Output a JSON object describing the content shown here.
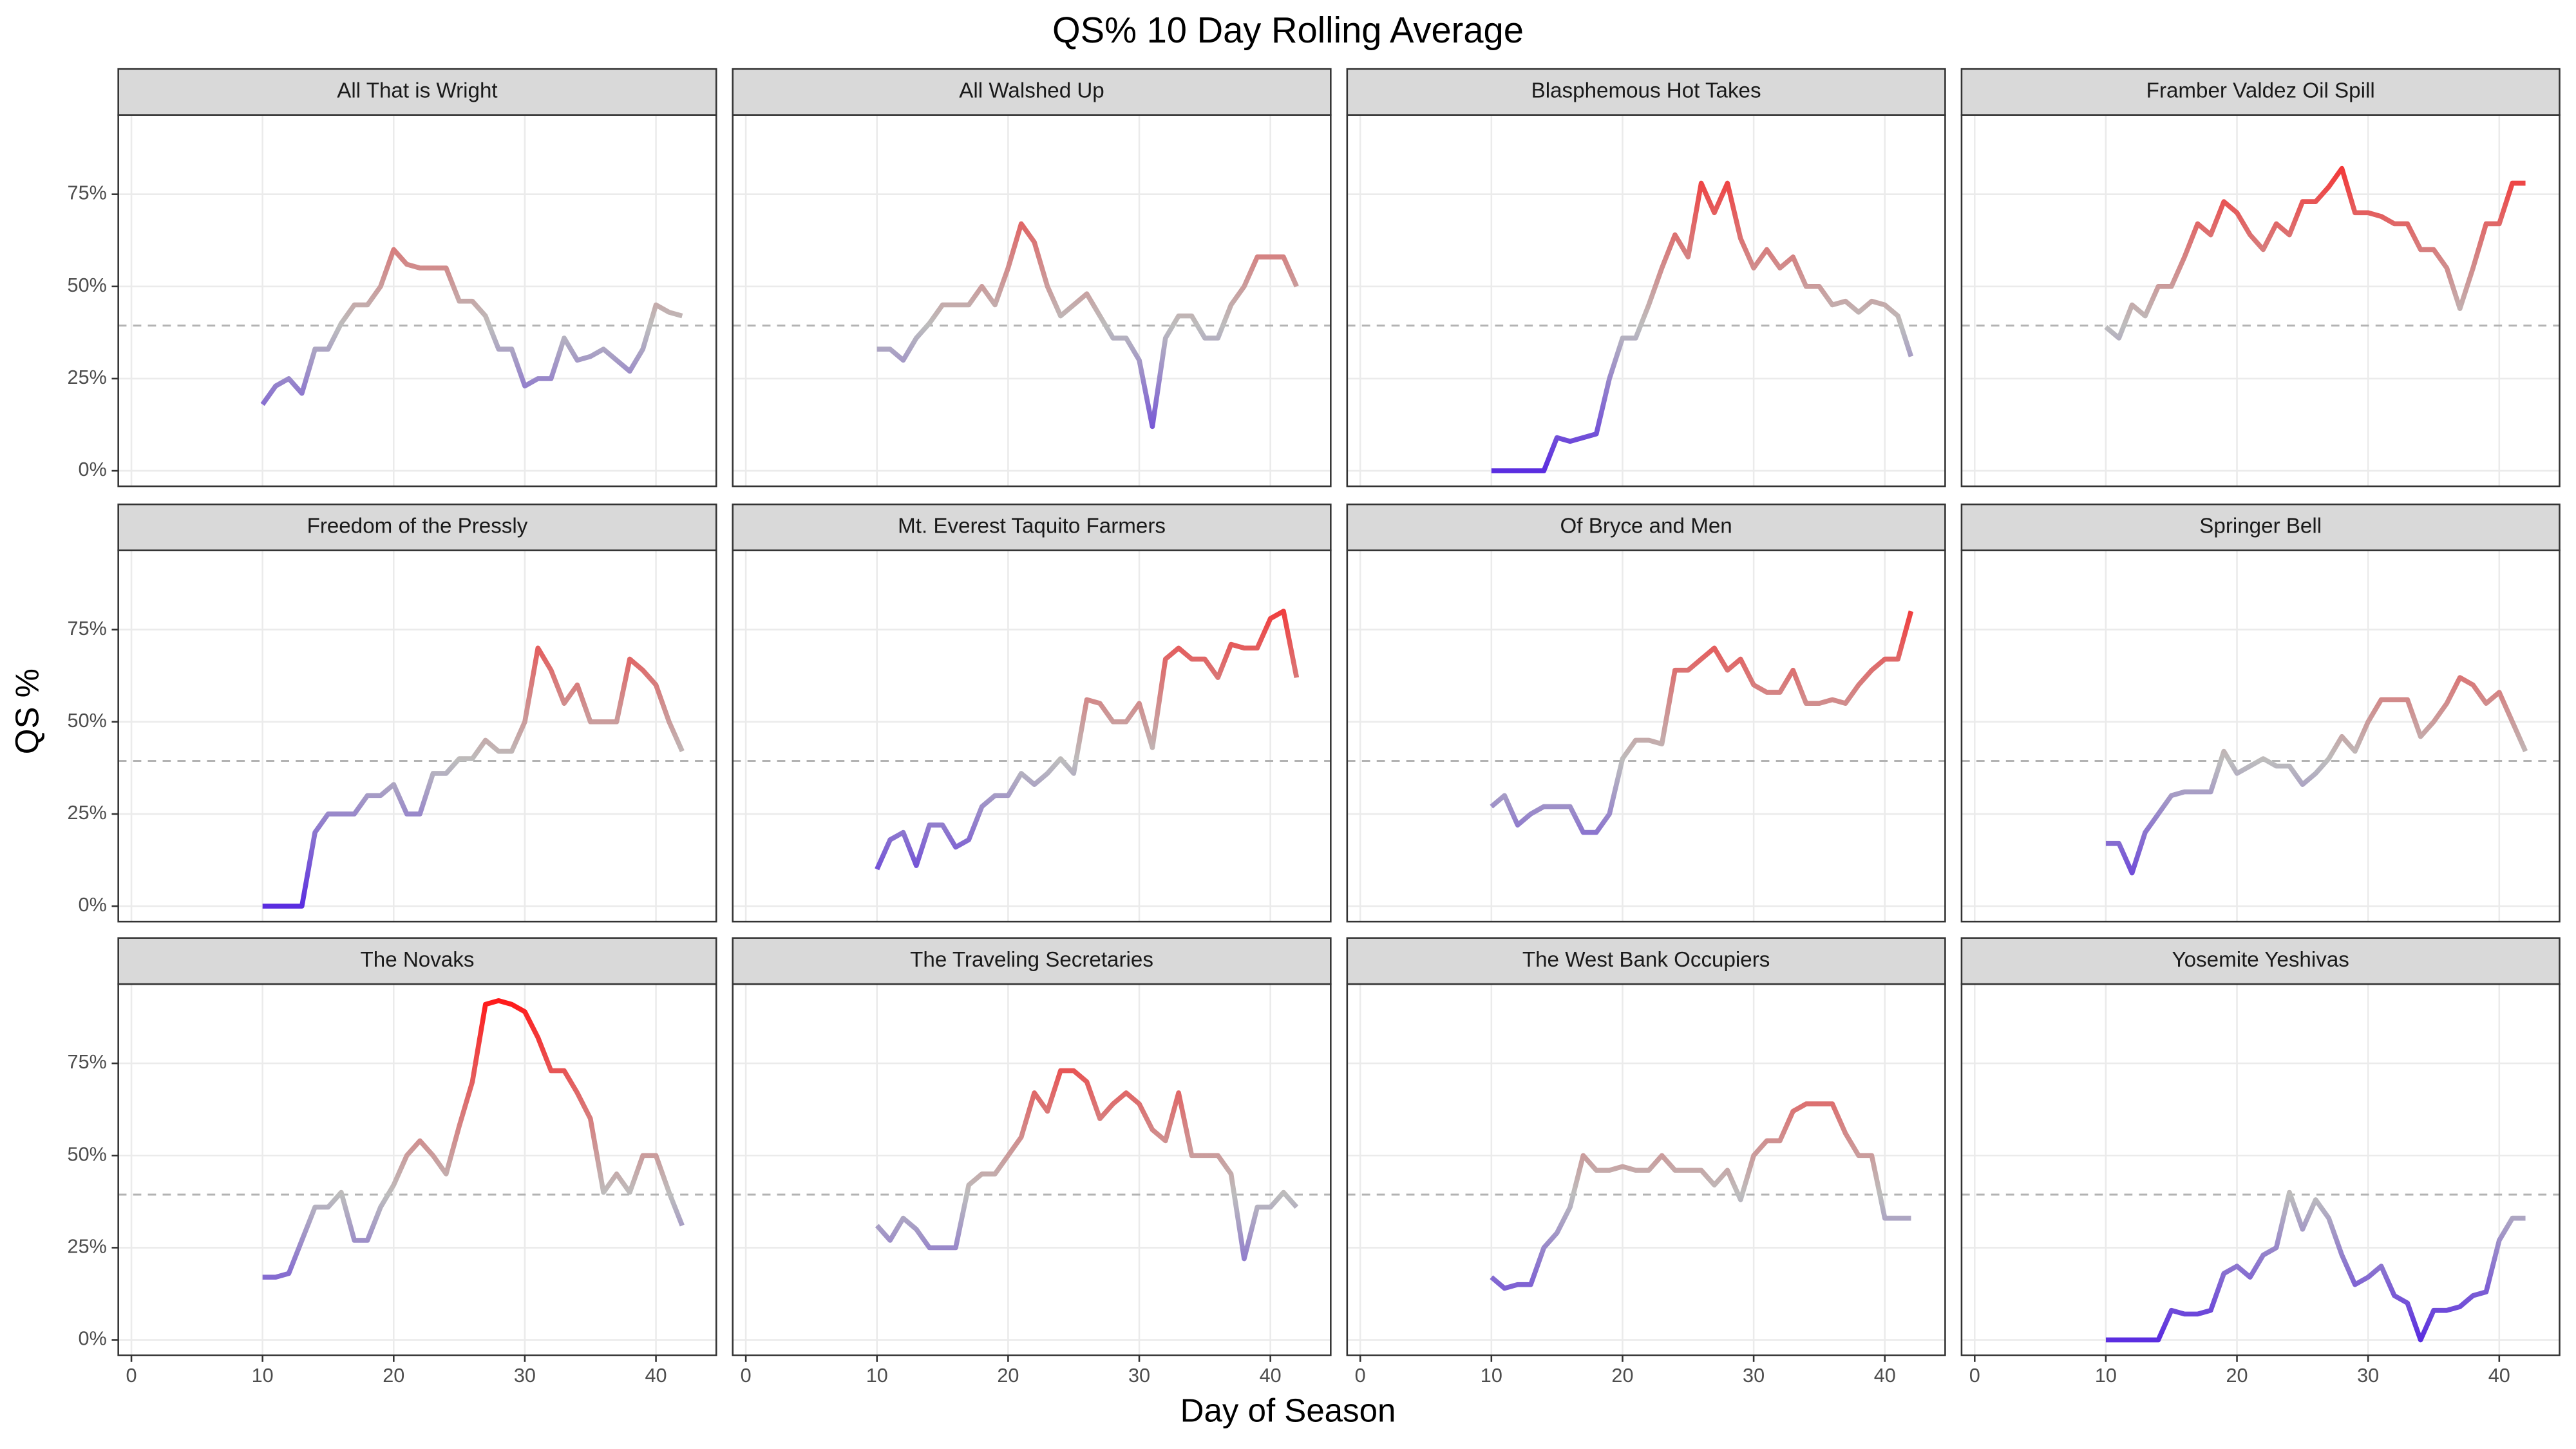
{
  "chart_data": {
    "type": "line",
    "title": "QS% 10 Day Rolling Average",
    "x_label": "Day of Season",
    "y_label": "QS %",
    "x": [
      10,
      11,
      12,
      13,
      14,
      15,
      16,
      17,
      18,
      19,
      20,
      21,
      22,
      23,
      24,
      25,
      26,
      27,
      28,
      29,
      30,
      31,
      32,
      33,
      34,
      35,
      36,
      37,
      38,
      39,
      40,
      41,
      42
    ],
    "xlim": [
      -1,
      44.6
    ],
    "xticks": [
      0,
      10,
      20,
      30,
      40
    ],
    "ylim": [
      -4.2,
      96.5
    ],
    "yticks": [
      {
        "value": 0,
        "label": "0%"
      },
      {
        "value": 25,
        "label": "25%"
      },
      {
        "value": 50,
        "label": "50%"
      },
      {
        "value": 75,
        "label": "75%"
      }
    ],
    "grid": true,
    "reference_line": 39.4,
    "color_scale": {
      "low": "#5a2de0",
      "mid": "#bdbdbd",
      "high": "#ff1a1a",
      "limits": [
        0,
        92
      ]
    },
    "series": [
      {
        "name": "All That is Wright",
        "values": [
          18,
          23,
          25,
          21,
          33,
          33,
          40,
          45,
          45,
          50,
          60,
          56,
          55,
          55,
          55,
          46,
          46,
          42,
          33,
          33,
          23,
          25,
          25,
          36,
          30,
          31,
          33,
          30,
          27,
          33,
          45,
          43,
          42
        ]
      },
      {
        "name": "All Walshed Up",
        "values": [
          33,
          33,
          30,
          36,
          40,
          45,
          45,
          45,
          50,
          45,
          55,
          67,
          62,
          50,
          42,
          45,
          48,
          42,
          36,
          36,
          30,
          12,
          36,
          42,
          42,
          36,
          36,
          45,
          50,
          58,
          58,
          58,
          50
        ]
      },
      {
        "name": "Blasphemous Hot Takes",
        "values": [
          0,
          0,
          0,
          0,
          0,
          9,
          8,
          9,
          10,
          25,
          36,
          36,
          45,
          55,
          64,
          58,
          78,
          70,
          78,
          63,
          55,
          60,
          55,
          58,
          50,
          50,
          45,
          46,
          43,
          46,
          45,
          42,
          31
        ]
      },
      {
        "name": "Framber Valdez Oil Spill",
        "values": [
          39,
          36,
          45,
          42,
          50,
          50,
          58,
          67,
          64,
          73,
          70,
          64,
          60,
          67,
          64,
          73,
          73,
          77,
          82,
          70,
          70,
          69,
          67,
          67,
          60,
          60,
          55,
          44,
          55,
          67,
          67,
          78,
          78
        ]
      },
      {
        "name": "Freedom of the Pressly",
        "values": [
          0,
          0,
          0,
          0,
          20,
          25,
          25,
          25,
          30,
          30,
          33,
          25,
          25,
          36,
          36,
          40,
          40,
          45,
          42,
          42,
          50,
          70,
          64,
          55,
          60,
          50,
          50,
          50,
          67,
          64,
          60,
          50,
          42
        ]
      },
      {
        "name": "Mt. Everest Taquito Farmers",
        "values": [
          10,
          18,
          20,
          11,
          22,
          22,
          16,
          18,
          27,
          30,
          30,
          36,
          33,
          36,
          40,
          36,
          56,
          55,
          50,
          50,
          55,
          43,
          67,
          70,
          67,
          67,
          62,
          71,
          70,
          70,
          78,
          80,
          62
        ]
      },
      {
        "name": "Of Bryce and Men",
        "values": [
          27,
          30,
          22,
          25,
          27,
          27,
          27,
          20,
          20,
          25,
          40,
          45,
          45,
          44,
          64,
          64,
          67,
          70,
          64,
          67,
          60,
          58,
          58,
          64,
          55,
          55,
          56,
          55,
          60,
          64,
          67,
          67,
          80
        ]
      },
      {
        "name": "Springer Bell",
        "values": [
          17,
          17,
          9,
          20,
          25,
          30,
          31,
          31,
          31,
          42,
          36,
          38,
          40,
          38,
          38,
          33,
          36,
          40,
          46,
          42,
          50,
          56,
          56,
          56,
          46,
          50,
          55,
          62,
          60,
          55,
          58,
          50,
          42
        ]
      },
      {
        "name": "The Novaks",
        "values": [
          17,
          17,
          18,
          27,
          36,
          36,
          40,
          27,
          27,
          36,
          42,
          50,
          54,
          50,
          45,
          58,
          70,
          91,
          92,
          91,
          89,
          82,
          73,
          73,
          67,
          60,
          40,
          45,
          40,
          50,
          50,
          40,
          31
        ]
      },
      {
        "name": "The Traveling Secretaries",
        "values": [
          31,
          27,
          33,
          30,
          25,
          25,
          25,
          42,
          45,
          45,
          50,
          55,
          67,
          62,
          73,
          73,
          70,
          60,
          64,
          67,
          64,
          57,
          54,
          67,
          50,
          50,
          50,
          45,
          22,
          36,
          36,
          40,
          36
        ]
      },
      {
        "name": "The West Bank Occupiers",
        "values": [
          17,
          14,
          15,
          15,
          25,
          29,
          36,
          50,
          46,
          46,
          47,
          46,
          46,
          50,
          46,
          46,
          46,
          42,
          46,
          38,
          50,
          54,
          54,
          62,
          64,
          64,
          64,
          56,
          50,
          50,
          33,
          33,
          33
        ]
      },
      {
        "name": "Yosemite Yeshivas",
        "values": [
          0,
          0,
          0,
          0,
          0,
          8,
          7,
          7,
          8,
          18,
          20,
          17,
          23,
          25,
          40,
          30,
          38,
          33,
          23,
          15,
          17,
          20,
          12,
          10,
          0,
          8,
          8,
          9,
          12,
          13,
          27,
          33,
          33
        ]
      }
    ]
  }
}
